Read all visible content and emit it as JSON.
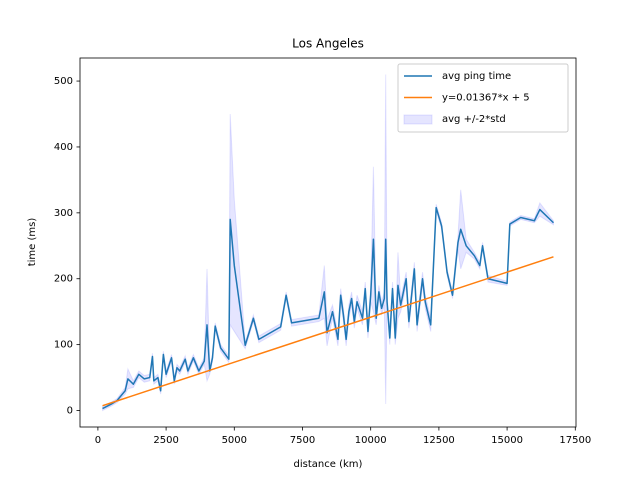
{
  "chart_data": {
    "type": "line",
    "title": "Los Angeles",
    "x_label": "distance (km)",
    "y_label": "time (ms)",
    "xlim": [
      -656,
      17526
    ],
    "ylim": [
      -25,
      535
    ],
    "xticks": [
      0,
      2500,
      5000,
      7500,
      10000,
      12500,
      15000,
      17500
    ],
    "yticks": [
      0,
      100,
      200,
      300,
      400,
      500
    ],
    "legend": "upper right",
    "series": [
      {
        "name": "avg ping time",
        "color": "#1f77b4",
        "x": [
          170,
          500,
          700,
          1000,
          1100,
          1300,
          1500,
          1700,
          1900,
          2000,
          2050,
          2200,
          2300,
          2400,
          2500,
          2700,
          2800,
          2900,
          3000,
          3200,
          3300,
          3500,
          3700,
          3900,
          4000,
          4100,
          4200,
          4300,
          4500,
          4800,
          4850,
          5000,
          5400,
          5700,
          5900,
          6700,
          6900,
          7100,
          8100,
          8300,
          8400,
          8600,
          8800,
          8900,
          9000,
          9100,
          9200,
          9300,
          9400,
          9500,
          9700,
          9800,
          9900,
          10000,
          10100,
          10200,
          10300,
          10400,
          10500,
          10550,
          10600,
          10700,
          10800,
          10900,
          11000,
          11100,
          11300,
          11400,
          11600,
          11700,
          11900,
          12000,
          12200,
          12400,
          12600,
          12800,
          13000,
          13200,
          13300,
          13500,
          13800,
          14000,
          14100,
          14300,
          15000,
          15100,
          15500,
          16000,
          16200,
          16700
        ],
        "values": [
          3,
          10,
          15,
          30,
          48,
          40,
          55,
          48,
          50,
          82,
          45,
          50,
          30,
          85,
          55,
          80,
          45,
          65,
          60,
          78,
          60,
          80,
          60,
          75,
          130,
          60,
          80,
          128,
          95,
          78,
          290,
          220,
          99,
          140,
          108,
          127,
          175,
          133,
          140,
          180,
          118,
          150,
          108,
          175,
          145,
          108,
          150,
          170,
          135,
          165,
          140,
          185,
          120,
          175,
          260,
          140,
          180,
          155,
          170,
          260,
          165,
          110,
          185,
          110,
          190,
          160,
          200,
          135,
          215,
          130,
          200,
          165,
          130,
          308,
          280,
          210,
          175,
          255,
          275,
          250,
          235,
          220,
          250,
          200,
          193,
          283,
          293,
          288,
          305,
          285
        ]
      },
      {
        "name": "y=0.01367*x + 5",
        "color": "#ff7f0e",
        "x": [
          170,
          16700
        ],
        "values": [
          7.32,
          233.29
        ]
      },
      {
        "name": "avg +/-2*std",
        "color": "#0000ff",
        "kind": "band",
        "x": [
          170,
          500,
          700,
          1000,
          1100,
          1300,
          1500,
          1700,
          1900,
          2000,
          2050,
          2200,
          2300,
          2400,
          2500,
          2700,
          2800,
          2900,
          3000,
          3200,
          3300,
          3500,
          3700,
          3900,
          4000,
          4100,
          4200,
          4300,
          4500,
          4800,
          4850,
          5000,
          5400,
          5700,
          5900,
          6700,
          6900,
          7100,
          8100,
          8300,
          8400,
          8600,
          8800,
          8900,
          9000,
          9100,
          9200,
          9300,
          9400,
          9500,
          9700,
          9800,
          9900,
          10000,
          10100,
          10200,
          10300,
          10400,
          10500,
          10550,
          10600,
          10700,
          10800,
          10900,
          11000,
          11100,
          11300,
          11400,
          11600,
          11700,
          11900,
          12000,
          12200,
          12400,
          12600,
          12800,
          13000,
          13200,
          13300,
          13500,
          13800,
          14000,
          14100,
          14300,
          15000,
          15100,
          15500,
          16000,
          16200,
          16700
        ],
        "lower": [
          0,
          7,
          12,
          25,
          33,
          35,
          50,
          43,
          45,
          77,
          40,
          45,
          25,
          80,
          50,
          75,
          40,
          60,
          55,
          73,
          55,
          75,
          55,
          70,
          45,
          55,
          75,
          123,
          90,
          73,
          130,
          120,
          94,
          135,
          103,
          122,
          170,
          128,
          135,
          140,
          98,
          140,
          98,
          165,
          135,
          98,
          140,
          160,
          125,
          155,
          130,
          175,
          110,
          165,
          150,
          130,
          170,
          145,
          160,
          10,
          155,
          100,
          175,
          100,
          140,
          150,
          190,
          125,
          205,
          120,
          190,
          155,
          120,
          303,
          275,
          205,
          170,
          245,
          215,
          240,
          230,
          215,
          245,
          195,
          190,
          280,
          290,
          285,
          295,
          282
        ],
        "upper": [
          6,
          13,
          18,
          35,
          63,
          45,
          60,
          53,
          55,
          87,
          50,
          55,
          35,
          90,
          60,
          85,
          50,
          70,
          65,
          83,
          65,
          85,
          65,
          80,
          215,
          65,
          85,
          133,
          100,
          83,
          450,
          320,
          104,
          145,
          113,
          132,
          180,
          138,
          145,
          220,
          138,
          160,
          118,
          185,
          155,
          118,
          160,
          180,
          145,
          175,
          150,
          195,
          130,
          185,
          370,
          150,
          190,
          165,
          180,
          510,
          175,
          120,
          195,
          120,
          240,
          170,
          210,
          145,
          225,
          140,
          210,
          175,
          140,
          313,
          285,
          215,
          180,
          265,
          335,
          260,
          240,
          225,
          255,
          205,
          196,
          286,
          296,
          291,
          315,
          288
        ]
      }
    ]
  }
}
